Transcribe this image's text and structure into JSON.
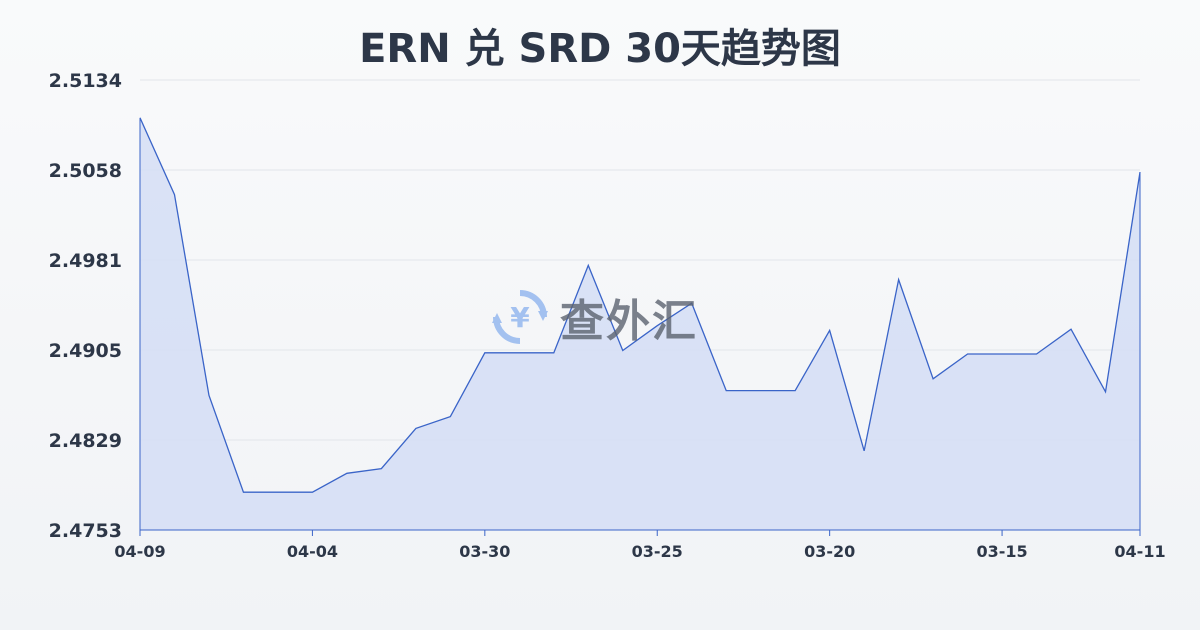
{
  "chart_data": {
    "type": "area",
    "title": "ERN 兑 SRD 30天趋势图",
    "xlabel": "",
    "ylabel": "",
    "ylim": [
      2.4753,
      2.5134
    ],
    "y_ticks": [
      "2.5134",
      "2.5058",
      "2.4981",
      "2.4905",
      "2.4829",
      "2.4753"
    ],
    "x_ticks": [
      {
        "index": 0,
        "label": "04-09"
      },
      {
        "index": 5,
        "label": "04-04"
      },
      {
        "index": 10,
        "label": "03-30"
      },
      {
        "index": 15,
        "label": "03-25"
      },
      {
        "index": 20,
        "label": "03-20"
      },
      {
        "index": 25,
        "label": "03-15"
      },
      {
        "index": 29,
        "label": "04-11"
      }
    ],
    "values": [
      2.5102,
      2.5037,
      2.4867,
      2.4785,
      2.4785,
      2.4785,
      2.4801,
      2.4805,
      2.4839,
      2.4849,
      2.4903,
      2.4903,
      2.4903,
      2.4977,
      2.4905,
      2.4926,
      2.4945,
      2.4871,
      2.4871,
      2.4871,
      2.4922,
      2.482,
      2.4965,
      2.4881,
      2.4902,
      2.4902,
      2.4902,
      2.4923,
      2.487,
      2.5056
    ],
    "grid": true,
    "colors": {
      "line": "#3a64c8",
      "fill": "#d6dff5",
      "grid": "#e2e5ea"
    }
  },
  "watermark": {
    "text": "查外汇",
    "icon": "yen-exchange-icon"
  }
}
